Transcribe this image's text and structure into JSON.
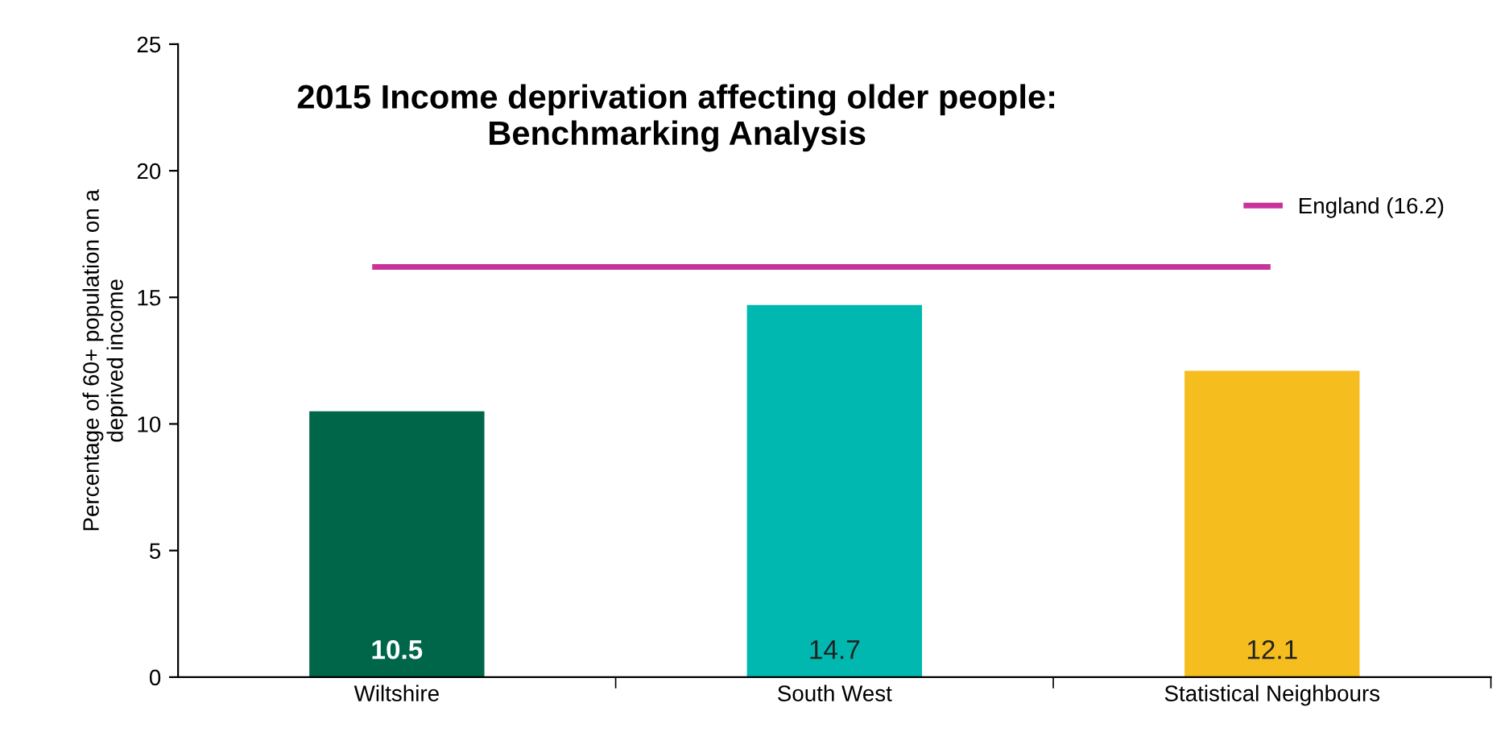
{
  "chart_data": {
    "type": "bar",
    "title": "2015 Income deprivation affecting older people:\nBenchmarking Analysis",
    "ylabel": "Percentage of 60+ population on a\ndeprived income",
    "categories": [
      "Wiltshire",
      "South West",
      "Statistical Neighbours"
    ],
    "values": [
      10.5,
      14.7,
      12.1
    ],
    "colors": [
      "#006649",
      "#00b8b0",
      "#f5be1e"
    ],
    "ylim": [
      0,
      25
    ],
    "yticks": [
      0,
      5,
      10,
      15,
      20,
      25
    ],
    "grid": false,
    "data_labels": true,
    "legend": "top right",
    "ref_lines": [
      {
        "axis": "y",
        "value": 16.2,
        "label": "England (16.2)",
        "color": "#c8329a",
        "line_style": "solid"
      }
    ]
  }
}
